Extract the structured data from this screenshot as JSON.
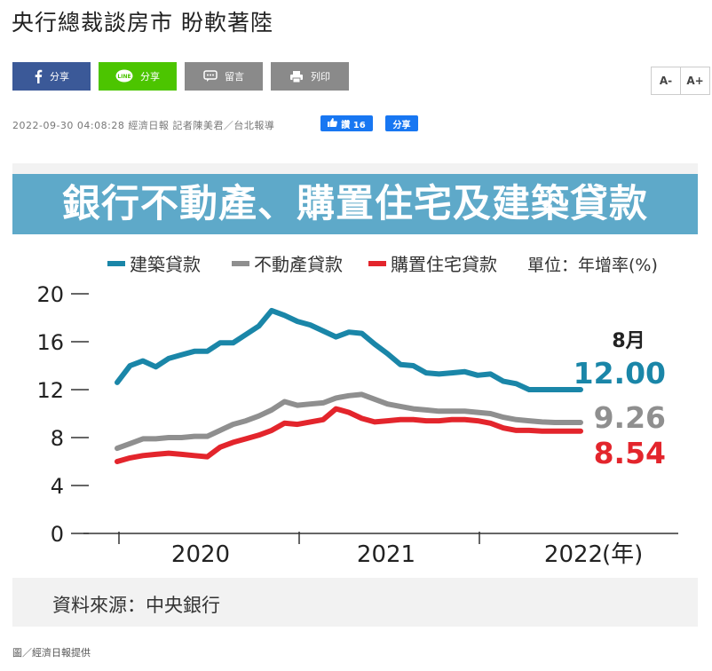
{
  "article": {
    "title": "央行總裁談房市 盼軟著陸",
    "meta": "2022-09-30 04:08:28 經濟日報 記者陳美君／台北報導",
    "credit": "圖／經濟日報提供"
  },
  "share": {
    "facebook_label": "分享",
    "line_label": "分享",
    "comment_label": "留言",
    "print_label": "列印"
  },
  "font_size": {
    "decrease": "A-",
    "increase": "A+"
  },
  "social": {
    "like_label": "讚 16",
    "share_label": "分享"
  },
  "chart_data": {
    "type": "line",
    "title": "銀行不動產、購置住宅及建築貸款",
    "unit_label": "單位：年增率(%)",
    "source": "資料來源：中央銀行",
    "ylim": [
      0,
      20
    ],
    "yticks": [
      "20",
      "16",
      "12",
      "8",
      "4",
      "0"
    ],
    "xticks": [
      "2020",
      "2021",
      "2022"
    ],
    "x_unit": "(年)",
    "end_label": "8月",
    "x": [
      "2019-08",
      "2019-09",
      "2019-10",
      "2019-11",
      "2019-12",
      "2020-01",
      "2020-02",
      "2020-03",
      "2020-04",
      "2020-05",
      "2020-06",
      "2020-07",
      "2020-08",
      "2020-09",
      "2020-10",
      "2020-11",
      "2020-12",
      "2021-01",
      "2021-02",
      "2021-03",
      "2021-04",
      "2021-05",
      "2021-06",
      "2021-07",
      "2021-08",
      "2021-09",
      "2021-10",
      "2021-11",
      "2021-12",
      "2022-01",
      "2022-02",
      "2022-03",
      "2022-04",
      "2022-05",
      "2022-06",
      "2022-07",
      "2022-08"
    ],
    "series": [
      {
        "name": "建築貸款",
        "color": "#1a86a8",
        "final_label": "12.00",
        "values": [
          12.6,
          14.0,
          14.4,
          13.9,
          14.6,
          14.9,
          15.2,
          15.2,
          15.9,
          15.9,
          16.6,
          17.3,
          18.6,
          18.2,
          17.7,
          17.4,
          16.9,
          16.4,
          16.8,
          16.7,
          15.8,
          15.0,
          14.1,
          14.0,
          13.4,
          13.3,
          13.4,
          13.5,
          13.2,
          13.3,
          12.7,
          12.5,
          12.0,
          12.0,
          12.0,
          12.0,
          12.0
        ]
      },
      {
        "name": "不動產貸款",
        "color": "#8f8f8f",
        "final_label": "9.26",
        "values": [
          7.1,
          7.5,
          7.9,
          7.9,
          8.0,
          8.0,
          8.1,
          8.1,
          8.6,
          9.1,
          9.4,
          9.8,
          10.3,
          11.0,
          10.7,
          10.8,
          10.9,
          11.3,
          11.5,
          11.6,
          11.2,
          10.8,
          10.6,
          10.4,
          10.3,
          10.2,
          10.2,
          10.2,
          10.1,
          10.0,
          9.7,
          9.5,
          9.4,
          9.3,
          9.26,
          9.26,
          9.26
        ]
      },
      {
        "name": "購置住宅貸款",
        "color": "#e3252c",
        "final_label": "8.54",
        "values": [
          6.0,
          6.3,
          6.5,
          6.6,
          6.7,
          6.6,
          6.5,
          6.4,
          7.2,
          7.6,
          7.9,
          8.2,
          8.6,
          9.2,
          9.1,
          9.3,
          9.5,
          10.4,
          10.1,
          9.6,
          9.3,
          9.4,
          9.5,
          9.5,
          9.4,
          9.4,
          9.5,
          9.5,
          9.4,
          9.2,
          8.8,
          8.6,
          8.6,
          8.54,
          8.54,
          8.54,
          8.54
        ]
      }
    ],
    "grid": false,
    "legend": "top"
  }
}
